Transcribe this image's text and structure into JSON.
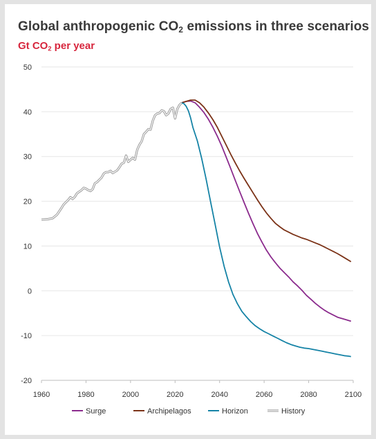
{
  "chart_data": {
    "type": "line",
    "title": "Global anthropogenic CO",
    "title_sub": "2",
    "title_rest": " emissions in three scenarios",
    "subtitle": "Gt CO",
    "subtitle_sub": "2",
    "subtitle_rest": " per year",
    "xlim": [
      1960,
      2100
    ],
    "ylim": [
      -20,
      50
    ],
    "x_ticks": [
      1960,
      1980,
      2000,
      2020,
      2040,
      2060,
      2080,
      2100
    ],
    "y_ticks": [
      50,
      40,
      30,
      20,
      10,
      0,
      -10,
      -20
    ],
    "grid": true,
    "legend_position": "bottom",
    "series": [
      {
        "name": "History",
        "color": "#a8a8a8",
        "style": "double",
        "points": [
          [
            1960,
            15.9
          ],
          [
            1963,
            16.0
          ],
          [
            1965,
            16.2
          ],
          [
            1967,
            17.0
          ],
          [
            1969,
            18.5
          ],
          [
            1970,
            19.3
          ],
          [
            1972,
            20.3
          ],
          [
            1973,
            20.9
          ],
          [
            1974,
            20.5
          ],
          [
            1975,
            21.0
          ],
          [
            1976,
            21.8
          ],
          [
            1978,
            22.5
          ],
          [
            1979,
            23.0
          ],
          [
            1980,
            22.8
          ],
          [
            1981,
            22.5
          ],
          [
            1982,
            22.3
          ],
          [
            1983,
            22.7
          ],
          [
            1984,
            24.0
          ],
          [
            1985,
            24.3
          ],
          [
            1986,
            24.8
          ],
          [
            1987,
            25.3
          ],
          [
            1988,
            26.2
          ],
          [
            1989,
            26.5
          ],
          [
            1990,
            26.5
          ],
          [
            1991,
            26.8
          ],
          [
            1992,
            26.3
          ],
          [
            1993,
            26.6
          ],
          [
            1994,
            26.9
          ],
          [
            1995,
            27.6
          ],
          [
            1996,
            28.4
          ],
          [
            1997,
            28.6
          ],
          [
            1998,
            30.2
          ],
          [
            1999,
            28.8
          ],
          [
            2000,
            29.3
          ],
          [
            2001,
            29.7
          ],
          [
            2002,
            29.3
          ],
          [
            2003,
            31.5
          ],
          [
            2004,
            32.6
          ],
          [
            2005,
            33.4
          ],
          [
            2006,
            35.0
          ],
          [
            2007,
            35.5
          ],
          [
            2008,
            36.1
          ],
          [
            2009,
            36.0
          ],
          [
            2010,
            38.0
          ],
          [
            2011,
            39.2
          ],
          [
            2012,
            39.6
          ],
          [
            2013,
            39.7
          ],
          [
            2014,
            40.3
          ],
          [
            2015,
            40.1
          ],
          [
            2016,
            39.2
          ],
          [
            2017,
            39.6
          ],
          [
            2018,
            40.6
          ],
          [
            2019,
            40.9
          ],
          [
            2020,
            38.5
          ],
          [
            2021,
            40.6
          ],
          [
            2022,
            41.5
          ],
          [
            2023,
            42.0
          ]
        ]
      },
      {
        "name": "Surge",
        "color": "#8b2b8d",
        "style": "single",
        "points": [
          [
            2023,
            42.0
          ],
          [
            2025,
            42.3
          ],
          [
            2027,
            42.4
          ],
          [
            2029,
            42.0
          ],
          [
            2031,
            41.0
          ],
          [
            2033,
            39.8
          ],
          [
            2035,
            38.3
          ],
          [
            2037,
            36.5
          ],
          [
            2039,
            34.5
          ],
          [
            2041,
            32.3
          ],
          [
            2043,
            29.8
          ],
          [
            2045,
            27.3
          ],
          [
            2047,
            24.7
          ],
          [
            2049,
            22.2
          ],
          [
            2051,
            19.7
          ],
          [
            2053,
            17.3
          ],
          [
            2055,
            15.0
          ],
          [
            2057,
            12.8
          ],
          [
            2059,
            10.9
          ],
          [
            2061,
            9.1
          ],
          [
            2063,
            7.6
          ],
          [
            2065,
            6.3
          ],
          [
            2067,
            5.1
          ],
          [
            2069,
            4.1
          ],
          [
            2071,
            3.1
          ],
          [
            2073,
            2.0
          ],
          [
            2075,
            1.1
          ],
          [
            2077,
            0.1
          ],
          [
            2079,
            -1.0
          ],
          [
            2081,
            -1.9
          ],
          [
            2083,
            -2.8
          ],
          [
            2085,
            -3.6
          ],
          [
            2087,
            -4.3
          ],
          [
            2089,
            -4.9
          ],
          [
            2091,
            -5.4
          ],
          [
            2093,
            -5.9
          ],
          [
            2095,
            -6.2
          ],
          [
            2097,
            -6.5
          ],
          [
            2099,
            -6.8
          ]
        ]
      },
      {
        "name": "Archipelagos",
        "color": "#7b3217",
        "style": "single",
        "points": [
          [
            2023,
            42.0
          ],
          [
            2025,
            42.3
          ],
          [
            2027,
            42.6
          ],
          [
            2029,
            42.6
          ],
          [
            2031,
            42.0
          ],
          [
            2033,
            41.0
          ],
          [
            2035,
            39.7
          ],
          [
            2037,
            38.2
          ],
          [
            2039,
            36.5
          ],
          [
            2041,
            34.5
          ],
          [
            2043,
            32.5
          ],
          [
            2045,
            30.5
          ],
          [
            2047,
            28.6
          ],
          [
            2049,
            26.8
          ],
          [
            2051,
            25.1
          ],
          [
            2053,
            23.5
          ],
          [
            2055,
            21.9
          ],
          [
            2057,
            20.3
          ],
          [
            2059,
            18.8
          ],
          [
            2061,
            17.4
          ],
          [
            2063,
            16.2
          ],
          [
            2065,
            15.1
          ],
          [
            2067,
            14.3
          ],
          [
            2069,
            13.6
          ],
          [
            2071,
            13.1
          ],
          [
            2073,
            12.6
          ],
          [
            2075,
            12.2
          ],
          [
            2077,
            11.8
          ],
          [
            2079,
            11.5
          ],
          [
            2081,
            11.1
          ],
          [
            2083,
            10.7
          ],
          [
            2085,
            10.3
          ],
          [
            2087,
            9.8
          ],
          [
            2089,
            9.3
          ],
          [
            2091,
            8.8
          ],
          [
            2093,
            8.3
          ],
          [
            2095,
            7.7
          ],
          [
            2097,
            7.1
          ],
          [
            2099,
            6.5
          ]
        ]
      },
      {
        "name": "Horizon",
        "color": "#1583a6",
        "style": "single",
        "points": [
          [
            2023,
            42.0
          ],
          [
            2024,
            41.8
          ],
          [
            2025,
            41.2
          ],
          [
            2026,
            40.2
          ],
          [
            2027,
            38.6
          ],
          [
            2028,
            36.5
          ],
          [
            2030,
            33.5
          ],
          [
            2032,
            29.5
          ],
          [
            2034,
            24.8
          ],
          [
            2036,
            19.8
          ],
          [
            2038,
            14.8
          ],
          [
            2040,
            9.8
          ],
          [
            2042,
            5.5
          ],
          [
            2044,
            2.0
          ],
          [
            2046,
            -0.8
          ],
          [
            2048,
            -2.9
          ],
          [
            2050,
            -4.6
          ],
          [
            2052,
            -5.8
          ],
          [
            2054,
            -6.9
          ],
          [
            2056,
            -7.8
          ],
          [
            2058,
            -8.5
          ],
          [
            2060,
            -9.1
          ],
          [
            2062,
            -9.6
          ],
          [
            2064,
            -10.1
          ],
          [
            2066,
            -10.6
          ],
          [
            2068,
            -11.1
          ],
          [
            2070,
            -11.6
          ],
          [
            2072,
            -12.0
          ],
          [
            2074,
            -12.3
          ],
          [
            2076,
            -12.6
          ],
          [
            2078,
            -12.8
          ],
          [
            2080,
            -12.9
          ],
          [
            2082,
            -13.1
          ],
          [
            2084,
            -13.3
          ],
          [
            2086,
            -13.5
          ],
          [
            2088,
            -13.7
          ],
          [
            2090,
            -13.9
          ],
          [
            2092,
            -14.1
          ],
          [
            2094,
            -14.3
          ],
          [
            2096,
            -14.5
          ],
          [
            2098,
            -14.6
          ],
          [
            2099,
            -14.7
          ]
        ]
      }
    ],
    "legend": [
      "Surge",
      "Archipelagos",
      "Horizon",
      "History"
    ]
  }
}
